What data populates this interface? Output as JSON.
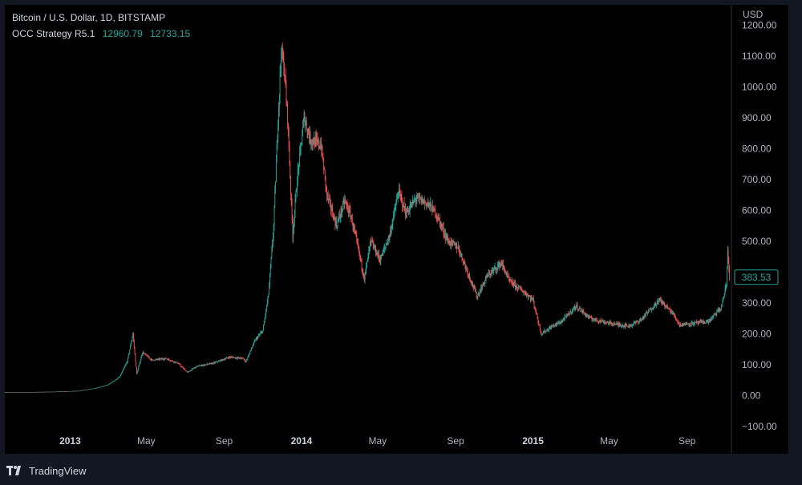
{
  "header": {
    "symbol": "Bitcoin / U.S. Dollar, 1D, BITSTAMP",
    "indicator_name": "OCC Strategy R5.1",
    "indicator_value_1": "12960.79",
    "indicator_value_2": "12733.15"
  },
  "footer": {
    "brand": "TradingView"
  },
  "colors": {
    "up": "#26a69a",
    "down": "#ef5350",
    "background": "#000000",
    "panel": "#131722"
  },
  "chart_data": {
    "type": "candlestick",
    "currency": "USD",
    "current_price": "383.53",
    "y_range": [
      -100,
      1250
    ],
    "y_ticks": [
      {
        "value": 1200,
        "label": "1200.00"
      },
      {
        "value": 1100,
        "label": "1100.00"
      },
      {
        "value": 1000,
        "label": "1000.00"
      },
      {
        "value": 900,
        "label": "900.00"
      },
      {
        "value": 800,
        "label": "800.00"
      },
      {
        "value": 700,
        "label": "700.00"
      },
      {
        "value": 600,
        "label": "600.00"
      },
      {
        "value": 500,
        "label": "500.00"
      },
      {
        "value": 300,
        "label": "300.00"
      },
      {
        "value": 200,
        "label": "200.00"
      },
      {
        "value": 100,
        "label": "100.00"
      },
      {
        "value": 0,
        "label": "0.00"
      },
      {
        "value": -100,
        "label": "−100.00"
      }
    ],
    "x_ticks": [
      {
        "date": "2013-01-01",
        "label": "2013",
        "major": true
      },
      {
        "date": "2013-05-01",
        "label": "May",
        "major": false
      },
      {
        "date": "2013-09-01",
        "label": "Sep",
        "major": false
      },
      {
        "date": "2014-01-01",
        "label": "2014",
        "major": true
      },
      {
        "date": "2014-05-01",
        "label": "May",
        "major": false
      },
      {
        "date": "2014-09-01",
        "label": "Sep",
        "major": false
      },
      {
        "date": "2015-01-01",
        "label": "2015",
        "major": true
      },
      {
        "date": "2015-05-01",
        "label": "May",
        "major": false
      },
      {
        "date": "2015-09-01",
        "label": "Sep",
        "major": false
      }
    ],
    "x_range": [
      "2012-09-20",
      "2015-11-10"
    ],
    "price_path": [
      [
        "2012-09-20",
        11
      ],
      [
        "2012-11-01",
        11
      ],
      [
        "2012-12-15",
        13
      ],
      [
        "2013-01-15",
        15
      ],
      [
        "2013-02-10",
        24
      ],
      [
        "2013-03-01",
        34
      ],
      [
        "2013-03-20",
        60
      ],
      [
        "2013-04-01",
        110
      ],
      [
        "2013-04-10",
        200
      ],
      [
        "2013-04-16",
        70
      ],
      [
        "2013-04-25",
        140
      ],
      [
        "2013-05-10",
        115
      ],
      [
        "2013-06-01",
        120
      ],
      [
        "2013-06-20",
        105
      ],
      [
        "2013-07-05",
        75
      ],
      [
        "2013-07-20",
        95
      ],
      [
        "2013-08-15",
        105
      ],
      [
        "2013-09-10",
        125
      ],
      [
        "2013-10-01",
        120
      ],
      [
        "2013-10-05",
        110
      ],
      [
        "2013-10-20",
        180
      ],
      [
        "2013-11-01",
        210
      ],
      [
        "2013-11-10",
        330
      ],
      [
        "2013-11-18",
        550
      ],
      [
        "2013-11-25",
        900
      ],
      [
        "2013-11-30",
        1120
      ],
      [
        "2013-12-05",
        1050
      ],
      [
        "2013-12-10",
        900
      ],
      [
        "2013-12-18",
        520
      ],
      [
        "2013-12-25",
        700
      ],
      [
        "2014-01-05",
        900
      ],
      [
        "2014-01-15",
        830
      ],
      [
        "2014-02-01",
        810
      ],
      [
        "2014-02-10",
        650
      ],
      [
        "2014-02-25",
        550
      ],
      [
        "2014-03-10",
        630
      ],
      [
        "2014-03-20",
        580
      ],
      [
        "2014-04-01",
        470
      ],
      [
        "2014-04-10",
        380
      ],
      [
        "2014-04-20",
        500
      ],
      [
        "2014-05-05",
        440
      ],
      [
        "2014-05-20",
        520
      ],
      [
        "2014-06-03",
        660
      ],
      [
        "2014-06-15",
        590
      ],
      [
        "2014-07-01",
        640
      ],
      [
        "2014-07-20",
        620
      ],
      [
        "2014-08-01",
        590
      ],
      [
        "2014-08-20",
        500
      ],
      [
        "2014-09-05",
        480
      ],
      [
        "2014-09-20",
        400
      ],
      [
        "2014-10-05",
        320
      ],
      [
        "2014-10-20",
        385
      ],
      [
        "2014-11-12",
        430
      ],
      [
        "2014-11-25",
        370
      ],
      [
        "2014-12-15",
        340
      ],
      [
        "2015-01-01",
        310
      ],
      [
        "2015-01-14",
        200
      ],
      [
        "2015-02-01",
        225
      ],
      [
        "2015-02-15",
        240
      ],
      [
        "2015-03-10",
        290
      ],
      [
        "2015-04-01",
        250
      ],
      [
        "2015-05-01",
        235
      ],
      [
        "2015-06-01",
        225
      ],
      [
        "2015-06-20",
        245
      ],
      [
        "2015-07-10",
        290
      ],
      [
        "2015-07-20",
        310
      ],
      [
        "2015-08-10",
        265
      ],
      [
        "2015-08-20",
        230
      ],
      [
        "2015-09-15",
        235
      ],
      [
        "2015-10-05",
        240
      ],
      [
        "2015-10-25",
        285
      ],
      [
        "2015-11-02",
        360
      ],
      [
        "2015-11-04",
        470
      ],
      [
        "2015-11-07",
        383
      ]
    ]
  }
}
